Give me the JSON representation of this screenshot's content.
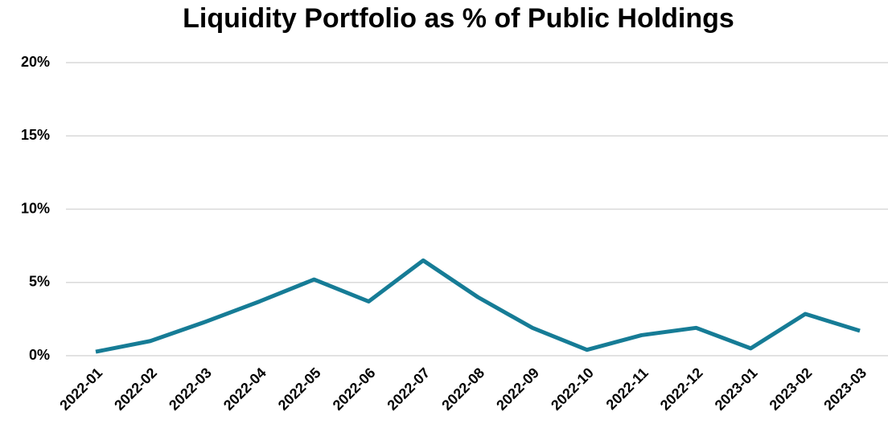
{
  "chart_data": {
    "type": "line",
    "title": "Liquidity Portfolio as % of Public Holdings",
    "categories": [
      "2022-01",
      "2022-02",
      "2022-03",
      "2022-04",
      "2022-05",
      "2022-06",
      "2022-07",
      "2022-08",
      "2022-09",
      "2022-10",
      "2022-11",
      "2022-12",
      "2023-01",
      "2023-02",
      "2023-03"
    ],
    "series": [
      {
        "name": "Liquidity Portfolio",
        "color": "#167c96",
        "values": [
          0.27,
          1.0,
          2.3,
          3.7,
          5.2,
          3.7,
          6.5,
          4.0,
          1.9,
          0.4,
          1.4,
          1.9,
          0.5,
          2.85,
          1.7
        ]
      }
    ],
    "ylim": [
      0,
      20
    ],
    "yticks": [
      {
        "value": 0,
        "label": "0%"
      },
      {
        "value": 5,
        "label": "5%"
      },
      {
        "value": 10,
        "label": "10%"
      },
      {
        "value": 15,
        "label": "15%"
      },
      {
        "value": 20,
        "label": "20%"
      }
    ],
    "grid": true
  }
}
